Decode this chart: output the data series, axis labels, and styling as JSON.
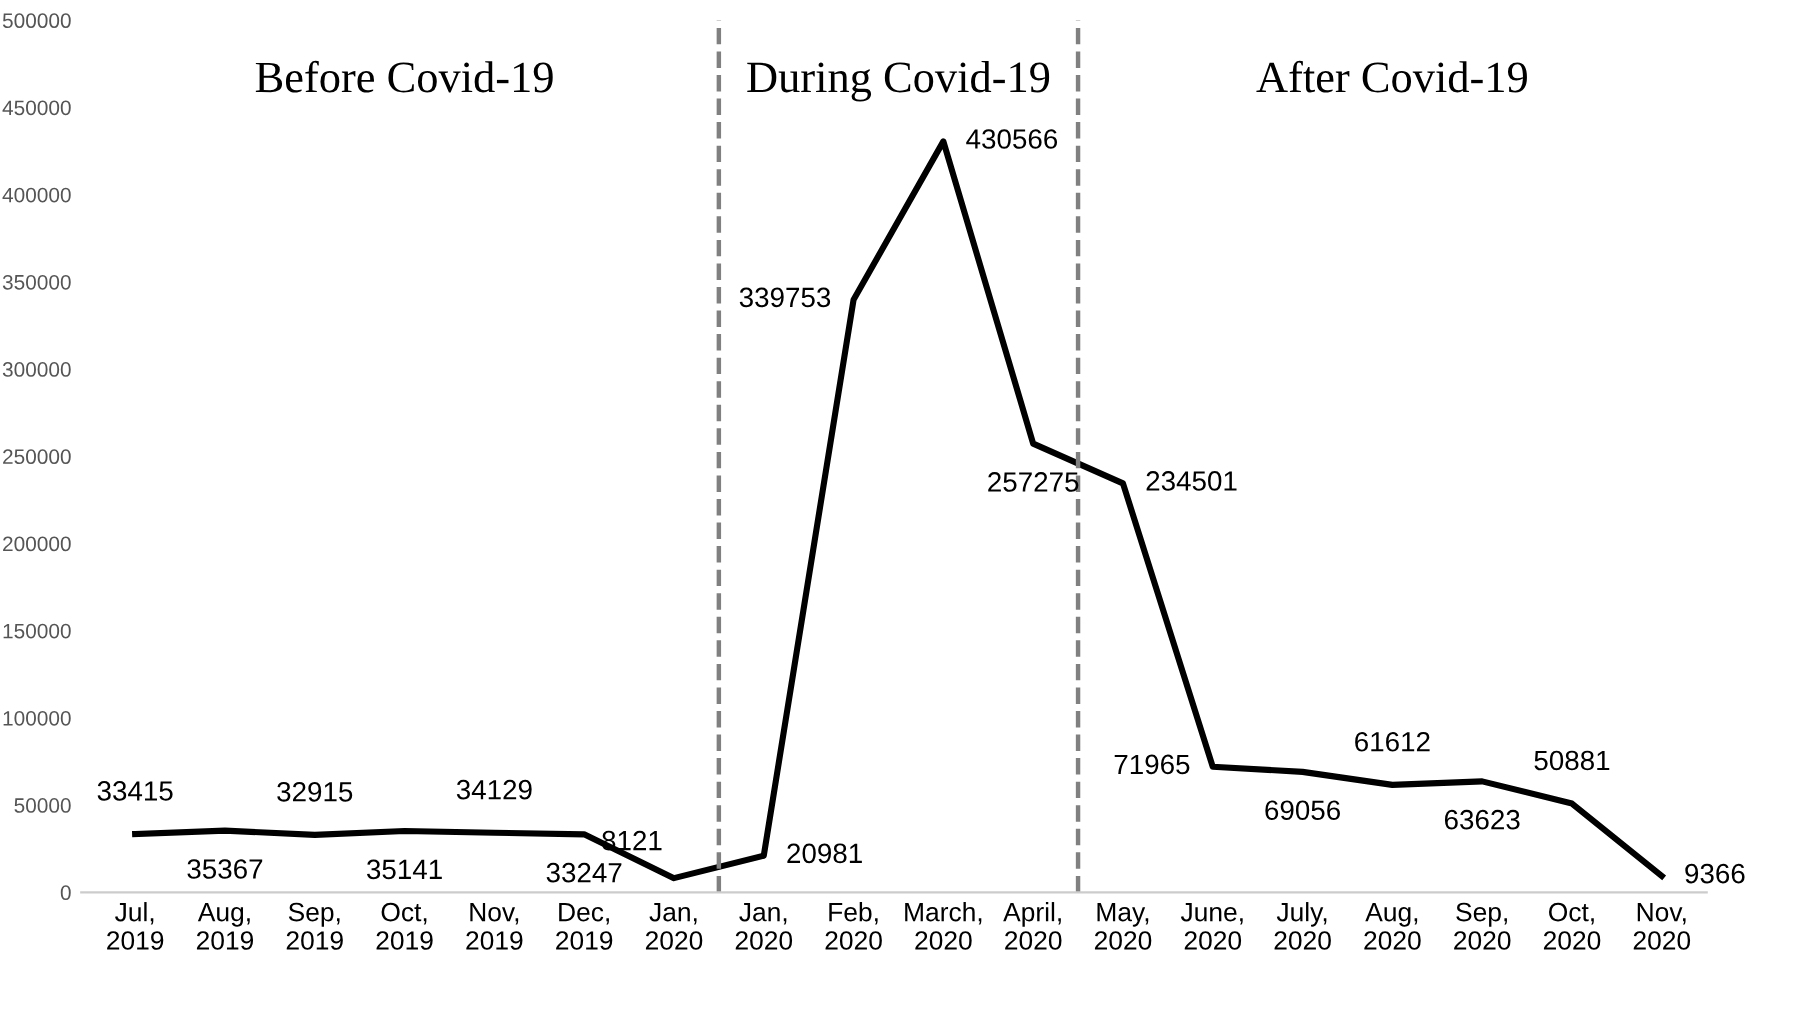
{
  "chart_data": {
    "type": "line",
    "categories": [
      "Jul,\n2019",
      "Aug,\n2019",
      "Sep,\n2019",
      "Oct,\n2019",
      "Nov,\n2019",
      "Dec,\n2019",
      "Jan,\n2020",
      "Jan,\n2020",
      "Feb,\n2020",
      "March,\n2020",
      "April,\n2020",
      "May,\n2020",
      "June,\n2020",
      "July,\n2020",
      "Aug,\n2020",
      "Sep,\n2020",
      "Oct,\n2020",
      "Nov,\n2020"
    ],
    "series": [
      {
        "color": "#000000",
        "values": [
          33415,
          35367,
          32915,
          35141,
          34129,
          33247,
          8121,
          20981,
          339753,
          430566,
          257275,
          234501,
          71965,
          69056,
          61612,
          63623,
          50881,
          9366
        ]
      }
    ],
    "ylim": [
      0,
      500000
    ],
    "yticks": [
      0,
      50000,
      100000,
      150000,
      200000,
      250000,
      300000,
      350000,
      400000,
      450000,
      500000
    ],
    "data_labels": true,
    "grid": false,
    "legend": false,
    "marker": "none",
    "line_style": "solid",
    "annotations": [
      "Before Covid-19",
      "During Covid-19",
      "After Covid-19"
    ]
  }
}
